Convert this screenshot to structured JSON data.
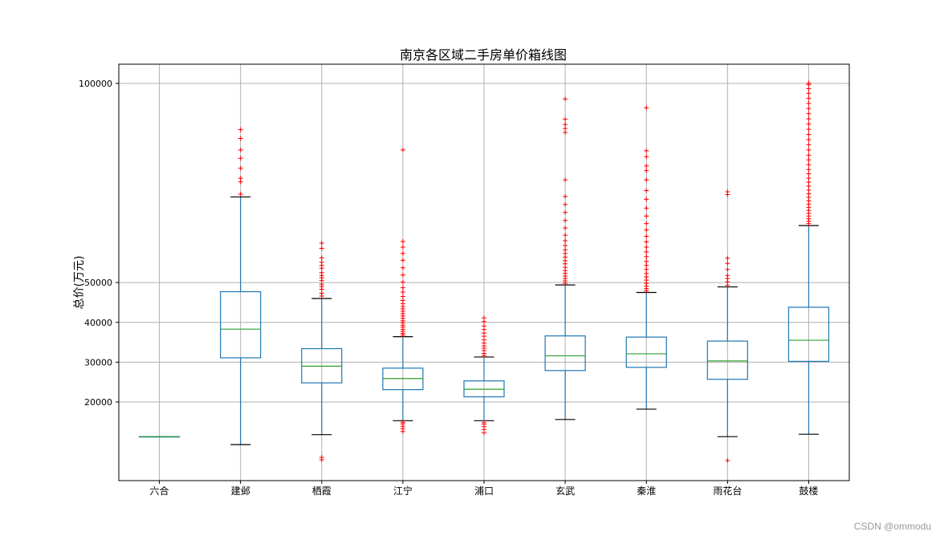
{
  "chart_data": {
    "type": "boxplot",
    "title": "南京各区域二手房单价箱线图",
    "xlabel": "",
    "ylabel": "总价(万元)",
    "ylim": [
      0,
      105000
    ],
    "yticks": [
      20000,
      30000,
      40000,
      50000,
      100000
    ],
    "grid": true,
    "categories": [
      "六合",
      "建邺",
      "栖霞",
      "江宁",
      "浦口",
      "玄武",
      "秦淮",
      "雨花台",
      "鼓楼"
    ],
    "boxes": [
      {
        "category": "六合",
        "whisker_low": 11300,
        "q1": 11300,
        "median": 11300,
        "q3": 11300,
        "whisker_high": 11300,
        "outliers": []
      },
      {
        "category": "建邺",
        "whisker_low": 9300,
        "q1": 31100,
        "median": 38300,
        "q3": 47700,
        "whisker_high": 71500,
        "outliers": [
          72200,
          75300,
          76200,
          78700,
          81200,
          83300,
          86200,
          88400
        ]
      },
      {
        "category": "栖霞",
        "whisker_low": 11800,
        "q1": 24800,
        "median": 29000,
        "q3": 33400,
        "whisker_high": 46000,
        "outliers": [
          5500,
          6100,
          46600,
          47300,
          48300,
          49000,
          49600,
          50500,
          51200,
          51800,
          52500,
          53600,
          54300,
          55100,
          56200,
          58600,
          59900
        ]
      },
      {
        "category": "江宁",
        "whisker_low": 15300,
        "q1": 23100,
        "median": 25900,
        "q3": 28500,
        "whisker_high": 36400,
        "outliers": [
          12600,
          13300,
          13900,
          14500,
          14900,
          36800,
          37200,
          37700,
          38200,
          38800,
          39300,
          39900,
          40400,
          41000,
          41600,
          42200,
          42800,
          43400,
          44000,
          44700,
          45500,
          46500,
          47600,
          48700,
          50100,
          51900,
          53700,
          55600,
          57300,
          58900,
          60300,
          83300
        ]
      },
      {
        "category": "浦口",
        "whisker_low": 15300,
        "q1": 21300,
        "median": 23200,
        "q3": 25300,
        "whisker_high": 31300,
        "outliers": [
          12300,
          13100,
          13800,
          14400,
          14800,
          31700,
          32200,
          32900,
          33500,
          34100,
          34800,
          35600,
          36500,
          37300,
          38200,
          39100,
          40200,
          41100
        ]
      },
      {
        "category": "玄武",
        "whisker_low": 15600,
        "q1": 27900,
        "median": 31600,
        "q3": 36600,
        "whisker_high": 49400,
        "outliers": [
          49800,
          50400,
          51000,
          51600,
          52300,
          53000,
          53800,
          54700,
          55500,
          56400,
          57300,
          58200,
          59300,
          60500,
          61900,
          63700,
          65600,
          67600,
          69600,
          71600,
          75800,
          87700,
          88700,
          89700,
          91000,
          96100
        ]
      },
      {
        "category": "秦淮",
        "whisker_low": 18200,
        "q1": 28700,
        "median": 32100,
        "q3": 36300,
        "whisker_high": 47500,
        "outliers": [
          47900,
          48500,
          49100,
          49800,
          50600,
          51400,
          52300,
          53300,
          54300,
          55300,
          56500,
          57700,
          58900,
          60200,
          61600,
          63200,
          64800,
          66700,
          68700,
          70900,
          73100,
          75800,
          78100,
          79300,
          81600,
          83100,
          93900
        ]
      },
      {
        "category": "雨花台",
        "whisker_low": 11300,
        "q1": 25700,
        "median": 30300,
        "q3": 35300,
        "whisker_high": 48900,
        "outliers": [
          5300,
          49300,
          50200,
          51000,
          51800,
          53300,
          54800,
          56100,
          72100,
          72800
        ]
      },
      {
        "category": "鼓楼",
        "whisker_low": 11900,
        "q1": 30200,
        "median": 35500,
        "q3": 43800,
        "whisker_high": 64300,
        "outliers": [
          64800,
          65400,
          66000,
          66700,
          67400,
          68100,
          68900,
          69700,
          70500,
          71400,
          72300,
          73200,
          74200,
          75200,
          76200,
          77300,
          78400,
          79600,
          80800,
          82000,
          83300,
          84600,
          85900,
          87200,
          88500,
          89800,
          91100,
          92400,
          93700,
          95000,
          96300,
          97500,
          98700,
          99700,
          100100
        ]
      }
    ],
    "colors": {
      "box": "#1f77b4",
      "median": "#2ca02c",
      "whisker_cap": "#000000",
      "outlier": "#ff0000",
      "grid": "#b0b0b0"
    }
  },
  "watermark": "CSDN @ommodu"
}
